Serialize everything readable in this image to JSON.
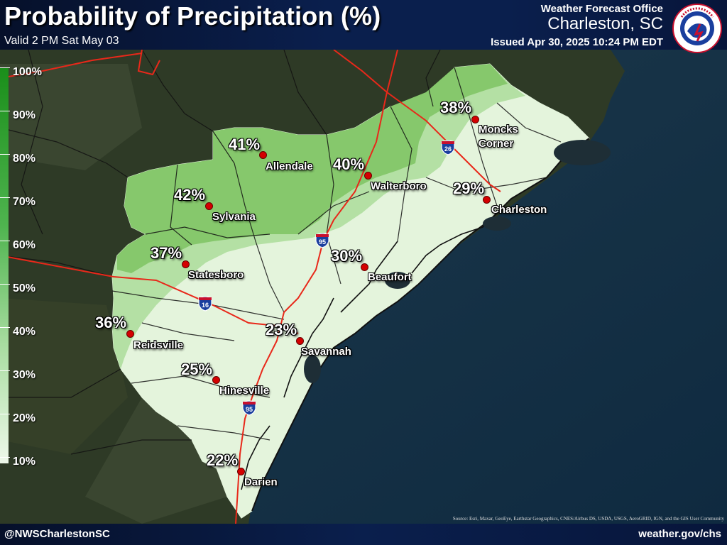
{
  "header": {
    "title": "Probability of Precipitation (%)",
    "valid": "Valid 2 PM Sat May 03",
    "office_label": "Weather Forecast Office",
    "office_city": "Charleston, SC",
    "issued": "Issued Apr 30, 2025 10:24 PM EDT",
    "logo_text": "NATIONAL WEATHER SERVICE"
  },
  "legend": [
    "100%",
    "90%",
    "80%",
    "70%",
    "60%",
    "50%",
    "40%",
    "30%",
    "20%",
    "10%"
  ],
  "locations": [
    {
      "name": "Moncks Corner",
      "line1": "Moncks",
      "line2": "Corner",
      "pop": "38%"
    },
    {
      "name": "Allendale",
      "pop": "41%"
    },
    {
      "name": "Walterboro",
      "pop": "40%"
    },
    {
      "name": "Charleston",
      "pop": "29%"
    },
    {
      "name": "Sylvania",
      "pop": "42%"
    },
    {
      "name": "Statesboro",
      "pop": "37%"
    },
    {
      "name": "Beaufort",
      "pop": "30%"
    },
    {
      "name": "Reidsville",
      "pop": "36%"
    },
    {
      "name": "Savannah",
      "pop": "23%"
    },
    {
      "name": "Hinesville",
      "pop": "25%"
    },
    {
      "name": "Darien",
      "pop": "22%"
    }
  ],
  "interstates": [
    "26",
    "95",
    "16",
    "95"
  ],
  "footer": {
    "left": "@NWSCharlestonSC",
    "right": "weather.gov/chs",
    "attribution": "Source: Esri, Maxar, GeoEye, Earthstar Geographics, CNES/Airbus DS, USDA, USGS, AeroGRID, IGN, and the GIS User Community"
  },
  "colors": {
    "pop_high": "#86c86c",
    "pop_mid": "#b4e0a4",
    "pop_low": "#e4f4dc",
    "highway": "#e8281a",
    "city_dot": "#d40000",
    "header_bg": "#0a1f4d"
  }
}
